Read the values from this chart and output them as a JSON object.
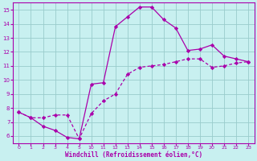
{
  "xlabel": "Windchill (Refroidissement éolien,°C)",
  "bg_color": "#c8f0f0",
  "line_color": "#aa00aa",
  "grid_color": "#99cccc",
  "tick_labels": [
    "0",
    "1",
    "2",
    "3",
    "4",
    "5",
    "10",
    "11",
    "12",
    "13",
    "14",
    "15",
    "16",
    "17",
    "18",
    "19",
    "20",
    "21",
    "22",
    "23"
  ],
  "ylim": [
    5.5,
    15.5
  ],
  "yticks": [
    6,
    7,
    8,
    9,
    10,
    11,
    12,
    13,
    14,
    15
  ],
  "line1_y": [
    7.7,
    7.3,
    6.7,
    6.4,
    5.9,
    5.8,
    9.7,
    9.8,
    13.8,
    14.5,
    15.2,
    15.2,
    14.3,
    13.7,
    12.1,
    12.2,
    12.5,
    11.7,
    11.5,
    11.3
  ],
  "line2_y": [
    7.7,
    7.3,
    7.3,
    7.5,
    7.5,
    5.8,
    7.6,
    8.5,
    9.0,
    10.4,
    10.9,
    11.0,
    11.1,
    11.3,
    11.5,
    11.5,
    10.9,
    11.0,
    11.2,
    11.3
  ]
}
